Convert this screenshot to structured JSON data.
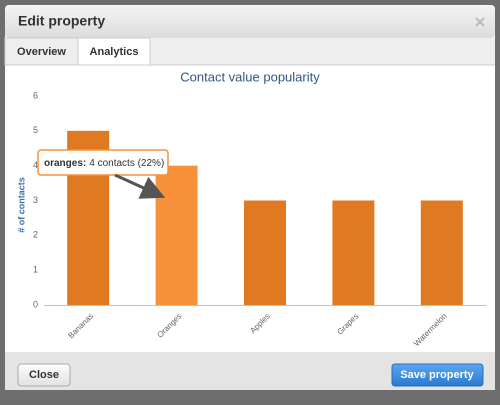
{
  "dialog": {
    "title": "Edit property",
    "tabs": [
      "Overview",
      "Analytics"
    ],
    "active_tab": 1,
    "buttons": [
      "Close",
      "Save property"
    ]
  },
  "tooltip": {
    "label": "oranges:",
    "text": "4 contacts (22%)"
  },
  "chart_data": {
    "type": "bar",
    "title": "Contact value popularity",
    "y_label": "# of contacts",
    "categories": [
      "Bananas",
      "Oranges",
      "Apples",
      "Grapes",
      "Watermelon"
    ],
    "values": [
      5,
      4,
      3,
      3,
      3
    ],
    "colors": [
      "#e07a22",
      "#f7923a",
      "#e07a22",
      "#e07a22",
      "#e07a22"
    ],
    "ylim": [
      0,
      6
    ],
    "yticks": [
      0,
      1,
      2,
      3,
      4,
      5,
      6
    ],
    "grid": false
  }
}
